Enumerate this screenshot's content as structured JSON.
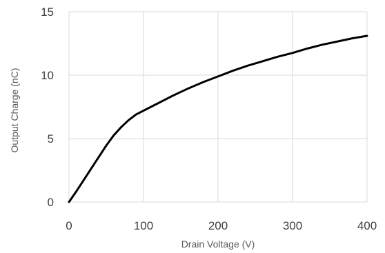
{
  "chart_data": {
    "type": "line",
    "title": "",
    "xlabel": "Drain Voltage (V)",
    "ylabel": "Output Charge (nC)",
    "xlim": [
      0,
      400
    ],
    "ylim": [
      0,
      15
    ],
    "xticks": [
      0,
      100,
      200,
      300,
      400
    ],
    "yticks": [
      0,
      5,
      10,
      15
    ],
    "xtick_labels": [
      "0",
      "100",
      "200",
      "300",
      "400"
    ],
    "ytick_labels": [
      "0",
      "5",
      "10",
      "15"
    ],
    "grid": "vertical and horizontal",
    "legend": "none",
    "line_color": "#000000",
    "series": [
      {
        "x": [
          0,
          10,
          20,
          30,
          40,
          50,
          60,
          70,
          80,
          90,
          100,
          120,
          140,
          160,
          180,
          200,
          220,
          240,
          260,
          280,
          300,
          320,
          340,
          360,
          380,
          400
        ],
        "values": [
          0,
          0.85,
          1.75,
          2.65,
          3.55,
          4.45,
          5.25,
          5.9,
          6.45,
          6.9,
          7.2,
          7.8,
          8.4,
          8.95,
          9.45,
          9.9,
          10.35,
          10.75,
          11.1,
          11.45,
          11.75,
          12.1,
          12.4,
          12.65,
          12.9,
          13.1
        ]
      }
    ]
  }
}
